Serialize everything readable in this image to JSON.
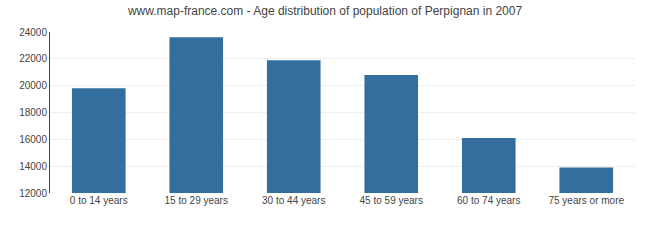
{
  "chart_data": {
    "type": "bar",
    "title": "www.map-france.com - Age distribution of population of Perpignan in 2007",
    "categories": [
      "0 to 14 years",
      "15 to 29 years",
      "30 to 44 years",
      "45 to 59 years",
      "60 to 74 years",
      "75 years or more"
    ],
    "values": [
      19800,
      23600,
      21900,
      20800,
      16100,
      13900
    ],
    "color": "#336e9e",
    "ylim": [
      12000,
      24000
    ],
    "yticks": [
      12000,
      14000,
      16000,
      18000,
      20000,
      22000,
      24000
    ],
    "grid": true
  }
}
